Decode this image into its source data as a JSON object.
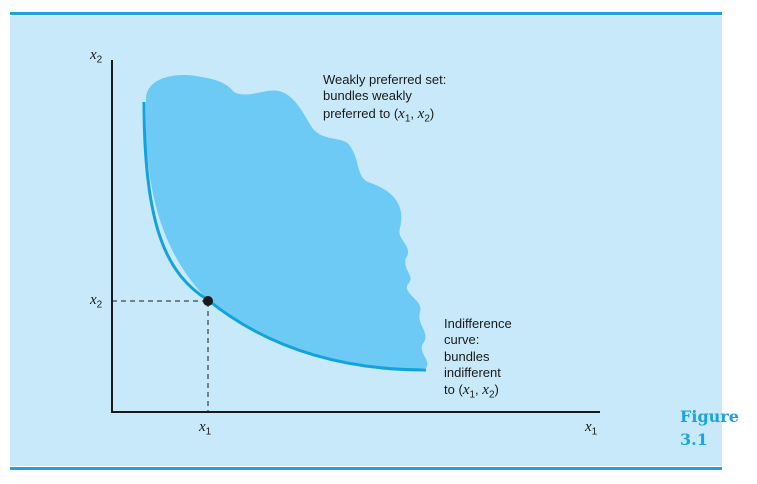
{
  "figure": {
    "word": "Figure",
    "number": "3.1"
  },
  "axes": {
    "y_label": {
      "var": "x",
      "sub": "2"
    },
    "x_label": {
      "var": "x",
      "sub": "1"
    },
    "x_tick": {
      "var": "x",
      "sub": "1"
    },
    "y_tick": {
      "var": "x",
      "sub": "2"
    }
  },
  "annotations": {
    "preferred": {
      "line1": "Weakly preferred set:",
      "line2": "bundles weakly",
      "line3_prefix": "preferred to ",
      "bundle": "(x1, x2)"
    },
    "indifference": {
      "line1": "Indifference",
      "line2": "curve:",
      "line3": "bundles",
      "line4": "indifferent",
      "line5_prefix": "to ",
      "bundle": "(x1, x2)"
    }
  },
  "colors": {
    "accent": "#1aa3dc",
    "panel": "#c8e9f9",
    "region": "#6ccaf4",
    "curve": "#12a2dc",
    "ink": "#1a1a1a"
  }
}
